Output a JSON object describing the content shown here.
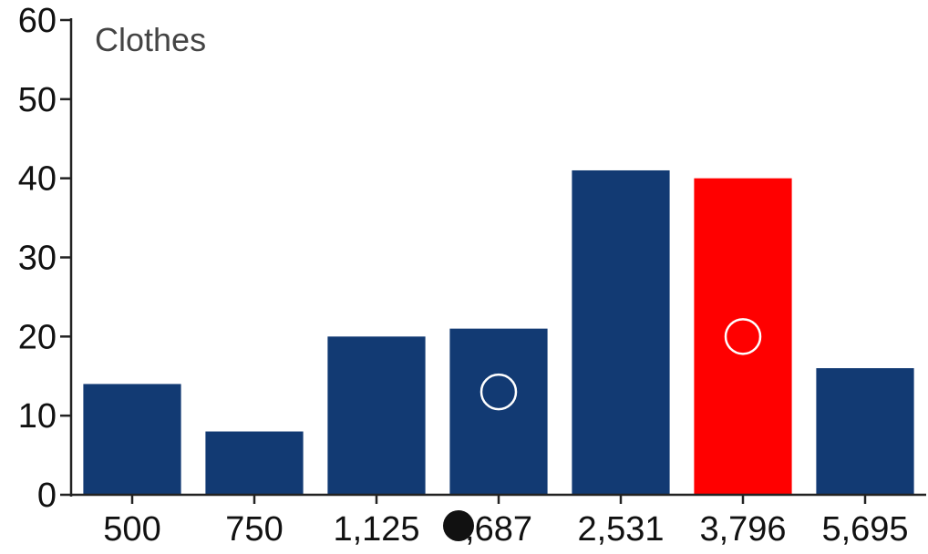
{
  "chart_data": {
    "type": "bar",
    "title": "Clothes",
    "xlabel": "",
    "ylabel": "",
    "categories": [
      "500",
      "750",
      "1,125",
      ",687",
      "2,531",
      "3,796",
      "5,695"
    ],
    "values": [
      14,
      8,
      20,
      21,
      41,
      40,
      16
    ],
    "ylim": [
      0,
      60
    ],
    "yticks": [
      "0",
      "10",
      "20",
      "30",
      "40",
      "50",
      "60"
    ],
    "grid": false,
    "legend": "none",
    "colors": {
      "bar": "#123a73",
      "highlight": "#ff0000",
      "axis": "#222222",
      "marker_outline": "#ffffff",
      "cursor": "#111111"
    },
    "highlight_index": 5,
    "markers": [
      {
        "category_index": 3,
        "value": 13,
        "style": "hollow-circle"
      },
      {
        "category_index": 5,
        "value": 20,
        "style": "hollow-circle"
      }
    ],
    "cursor": {
      "category_index": 3,
      "icon": "black-dot-cursor-icon"
    }
  }
}
